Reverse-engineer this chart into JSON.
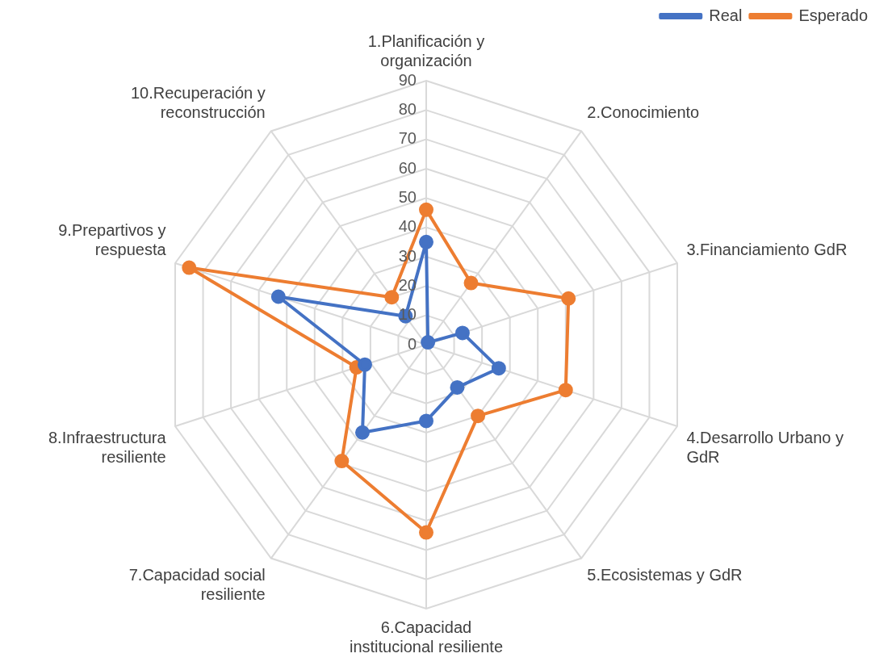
{
  "chart_data": {
    "type": "radar",
    "categories": [
      "1.Planificación y organización",
      "2.Conocimiento",
      "3.Financiamiento GdR",
      "4.Desarrollo Urbano y GdR",
      "5.Ecosistemas y GdR",
      "6.Capacidad institucional resiliente",
      "7.Capacidad social resiliente",
      "8.Infraestructura resiliente",
      "9.Prepartivos y respuesta",
      "10.Recuperación y reconstrucción"
    ],
    "series": [
      {
        "name": "Real",
        "color": "#4472c4",
        "values": [
          35,
          1,
          13,
          26,
          18,
          26,
          37,
          22,
          53,
          12
        ]
      },
      {
        "name": "Esperado",
        "color": "#ed7d31",
        "values": [
          46,
          26,
          51,
          50,
          30,
          64,
          49,
          25,
          85,
          20
        ]
      }
    ],
    "ylim": [
      0,
      90
    ],
    "yticks": [
      0,
      10,
      20,
      30,
      40,
      50,
      60,
      70,
      80,
      90
    ],
    "grid": true,
    "legend": "top right",
    "marker": "circle"
  }
}
